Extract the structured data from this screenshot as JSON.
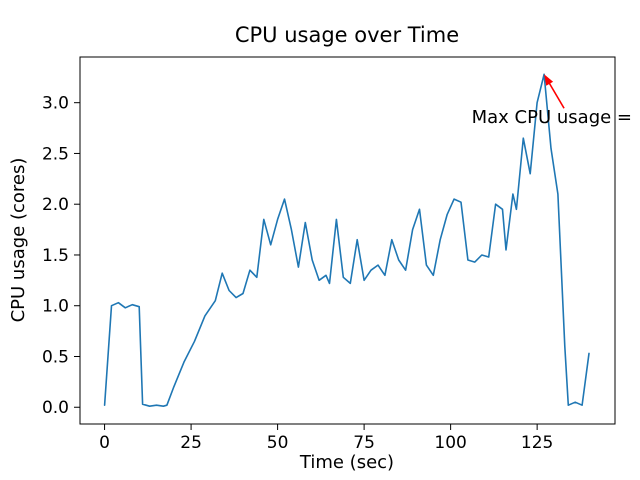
{
  "chart_data": {
    "type": "line",
    "title": "CPU usage over Time",
    "xlabel": "Time (sec)",
    "ylabel": "CPU usage (cores)",
    "line_color": "#1f77b4",
    "x_tick_values": [
      0,
      25,
      50,
      75,
      100,
      125
    ],
    "x_tick_labels": [
      "0",
      "25",
      "50",
      "75",
      "100",
      "125"
    ],
    "y_tick_values": [
      0.0,
      0.5,
      1.0,
      1.5,
      2.0,
      2.5,
      3.0
    ],
    "y_tick_labels": [
      "0.0",
      "0.5",
      "1.0",
      "1.5",
      "2.0",
      "2.5",
      "3.0"
    ],
    "xlim": [
      -7.1,
      147.5
    ],
    "ylim": [
      -0.165,
      3.45
    ],
    "grid": false,
    "legend": "none",
    "x": [
      0,
      2,
      4,
      6,
      8,
      10,
      11,
      13,
      15,
      17,
      18,
      20,
      23,
      26,
      29,
      32,
      34,
      36,
      38,
      40,
      42,
      44,
      46,
      48,
      50,
      52,
      54,
      56,
      58,
      60,
      62,
      64,
      65,
      67,
      69,
      71,
      73,
      75,
      77,
      79,
      81,
      83,
      85,
      87,
      89,
      91,
      93,
      95,
      97,
      99,
      101,
      103,
      105,
      107,
      109,
      111,
      113,
      115,
      116,
      118,
      119,
      121,
      123,
      125,
      127,
      129,
      131,
      133,
      134,
      136,
      138,
      140
    ],
    "y": [
      0.02,
      1.0,
      1.03,
      0.98,
      1.01,
      0.99,
      0.03,
      0.01,
      0.02,
      0.01,
      0.02,
      0.2,
      0.45,
      0.65,
      0.9,
      1.05,
      1.32,
      1.15,
      1.08,
      1.12,
      1.35,
      1.28,
      1.85,
      1.6,
      1.85,
      2.05,
      1.75,
      1.38,
      1.82,
      1.45,
      1.25,
      1.3,
      1.22,
      1.85,
      1.28,
      1.22,
      1.65,
      1.25,
      1.35,
      1.4,
      1.3,
      1.65,
      1.45,
      1.35,
      1.75,
      1.95,
      1.4,
      1.3,
      1.65,
      1.9,
      2.05,
      2.02,
      1.45,
      1.43,
      1.5,
      1.48,
      2.0,
      1.95,
      1.55,
      2.1,
      1.95,
      2.65,
      2.3,
      3.0,
      3.28,
      2.55,
      2.1,
      0.6,
      0.02,
      0.05,
      0.02,
      0.53
    ],
    "annotation": {
      "text": "Max CPU usage =",
      "color": "#ff0000",
      "point": {
        "x": 127,
        "y": 3.28
      }
    }
  }
}
